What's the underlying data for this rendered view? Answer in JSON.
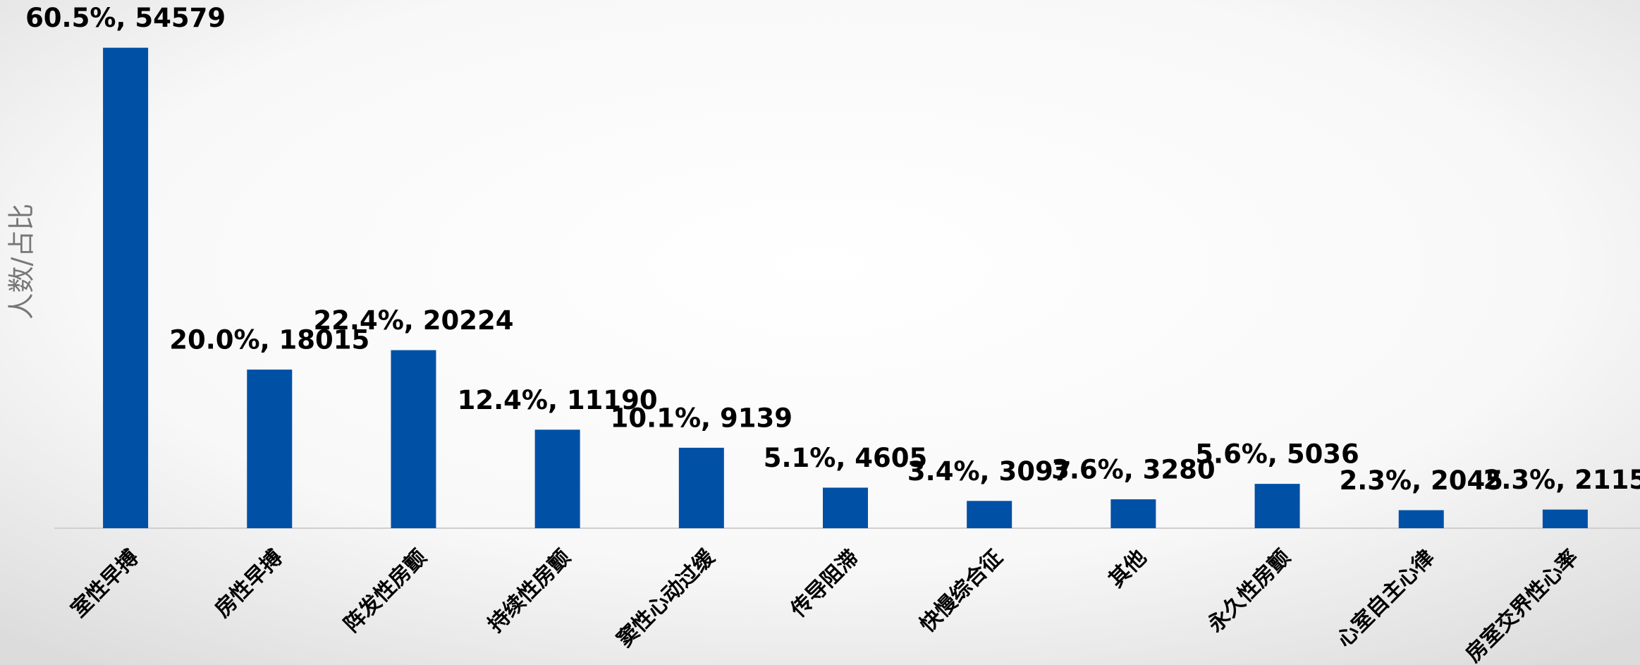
{
  "chart_data": {
    "type": "bar",
    "y_axis_label": "人数/占比",
    "categories": [
      "室性早搏",
      "房性早搏",
      "阵发性房颤",
      "持续性房颤",
      "窦性心动过缓",
      "传导阻滞",
      "快慢综合征",
      "其他",
      "永久性房颤",
      "心室自主心律",
      "房室交界性心率"
    ],
    "values": [
      54579,
      18015,
      20224,
      11190,
      9139,
      4605,
      3097,
      3280,
      5036,
      2045,
      2115
    ],
    "value_labels": [
      "60.5%, 54579",
      "20.0%, 18015",
      "22.4%, 20224",
      "12.4%, 11190",
      "10.1%, 9139",
      "5.1%, 4605",
      "3.4%, 3097",
      "3.6%, 3280",
      "5.6%, 5036",
      "2.3%, 2045",
      "2.3%, 2115"
    ],
    "color": "#0050a6",
    "ylim": [
      0,
      60000
    ]
  }
}
